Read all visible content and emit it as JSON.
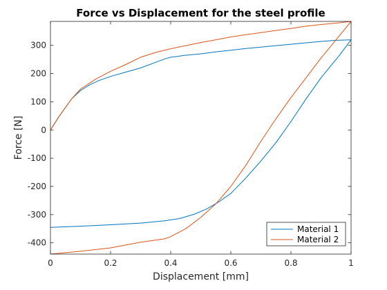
{
  "chart_data": {
    "type": "line",
    "title": "Force vs Displacement for the steel profile",
    "xlabel": "Displacement [mm]",
    "ylabel": "Force [N]",
    "xlim": [
      0,
      1
    ],
    "ylim": [
      -440,
      385
    ],
    "xticks": [
      0,
      0.2,
      0.4,
      0.6,
      0.8,
      1
    ],
    "xtick_labels": [
      "0",
      "0.2",
      "0.4",
      "0.6",
      "0.8",
      "1"
    ],
    "yticks": [
      -400,
      -300,
      -200,
      -100,
      0,
      100,
      200,
      300
    ],
    "ytick_labels": [
      "-400",
      "-300",
      "-200",
      "-100",
      "0",
      "100",
      "200",
      "300"
    ],
    "grid": false,
    "legend_position": "bottom-right",
    "series": [
      {
        "name": "Material 1",
        "color": "#0072BD",
        "x": [
          0,
          0.03,
          0.07,
          0.1,
          0.13,
          0.16,
          0.2,
          0.25,
          0.3,
          0.35,
          0.38,
          0.4,
          0.45,
          0.5,
          0.55,
          0.6,
          0.65,
          0.7,
          0.75,
          0.8,
          0.85,
          0.9,
          0.95,
          0.98,
          1,
          0.96,
          0.9,
          0.85,
          0.8,
          0.75,
          0.7,
          0.65,
          0.6,
          0.56,
          0.52,
          0.48,
          0.43,
          0.38,
          0.3,
          0.2,
          0.1,
          0
        ],
        "y": [
          0,
          50,
          110,
          140,
          160,
          175,
          190,
          205,
          220,
          240,
          252,
          258,
          265,
          270,
          277,
          283,
          289,
          294,
          299,
          304,
          309,
          314,
          318,
          319,
          320,
          263,
          185,
          110,
          30,
          -45,
          -110,
          -170,
          -225,
          -255,
          -280,
          -298,
          -314,
          -322,
          -330,
          -336,
          -341,
          -345
        ]
      },
      {
        "name": "Material 2",
        "color": "#D95319",
        "x": [
          0,
          0.03,
          0.07,
          0.1,
          0.15,
          0.2,
          0.25,
          0.3,
          0.35,
          0.4,
          0.45,
          0.5,
          0.55,
          0.6,
          0.65,
          0.7,
          0.75,
          0.8,
          0.85,
          0.9,
          0.95,
          1,
          0.95,
          0.9,
          0.85,
          0.8,
          0.75,
          0.7,
          0.65,
          0.6,
          0.55,
          0.5,
          0.45,
          0.4,
          0.38,
          0.3,
          0.2,
          0.1,
          0
        ],
        "y": [
          0,
          50,
          110,
          145,
          180,
          208,
          232,
          258,
          275,
          288,
          299,
          310,
          320,
          330,
          338,
          345,
          353,
          360,
          368,
          374,
          379,
          385,
          320,
          255,
          185,
          115,
          40,
          -40,
          -125,
          -200,
          -262,
          -310,
          -350,
          -378,
          -386,
          -398,
          -418,
          -430,
          -440
        ]
      }
    ]
  }
}
